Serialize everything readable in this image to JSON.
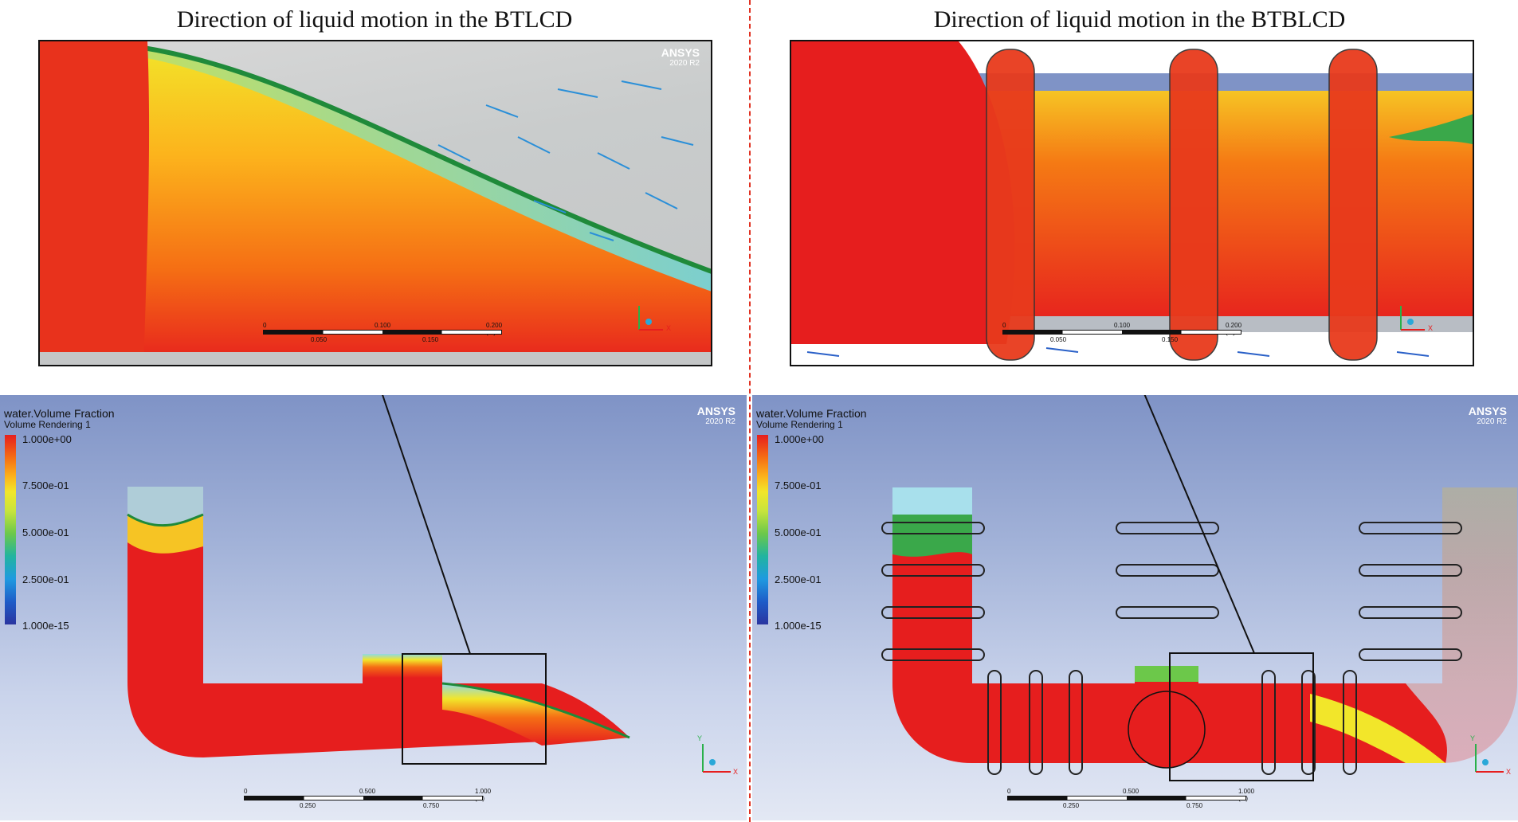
{
  "titles": {
    "left": "Direction of liquid motion in the BTLCD",
    "right": "Direction of liquid motion in the BTBLCD"
  },
  "legend": {
    "variable": "water.Volume Fraction",
    "rendering": "Volume Rendering 1",
    "ticks": [
      "1.000e+00",
      "7.500e-01",
      "5.000e-01",
      "2.500e-01",
      "1.000e-15"
    ]
  },
  "branding": {
    "name": "ANSYS",
    "version": "2020 R2"
  },
  "axes": {
    "x": "X",
    "y": "Y"
  },
  "scale_main": {
    "top": [
      "0",
      "0.500",
      "1.000 (m)"
    ],
    "bottom": [
      "0.250",
      "0.750"
    ]
  },
  "scale_zoom": {
    "top": [
      "0",
      "0.100",
      "0.200 (m)"
    ],
    "bottom": [
      "0.050",
      "0.150"
    ]
  },
  "colors": {
    "divider": "#e03020",
    "liquid": "#e61e1e",
    "gas": "#a2b2d8"
  }
}
